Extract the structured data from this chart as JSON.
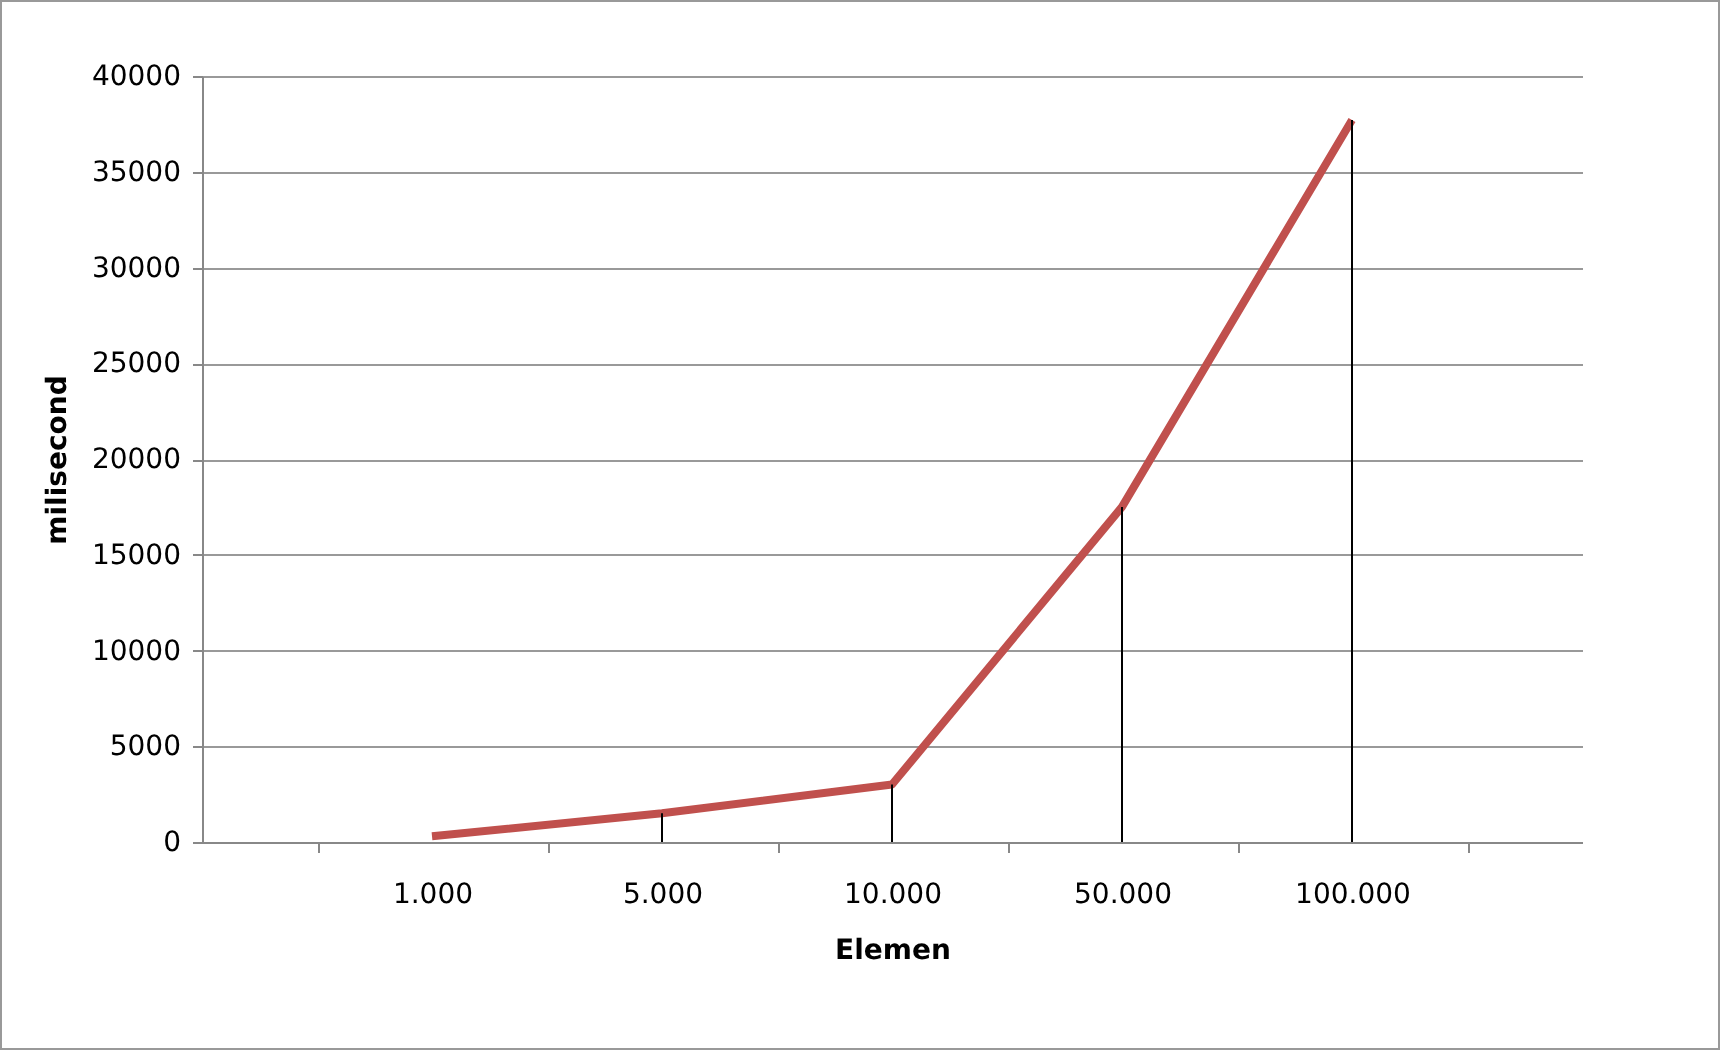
{
  "chart_data": {
    "type": "line",
    "xlabel": "Elemen",
    "ylabel": "milisecond",
    "categories": [
      "1.000",
      "5.000",
      "10.000",
      "50.000",
      "100.000"
    ],
    "series": [
      {
        "color": "#c0504d",
        "values": [
          300,
          1500,
          3000,
          17500,
          37700
        ],
        "errors": [
          null,
          [
            0,
            1500
          ],
          [
            0,
            3000
          ],
          [
            0,
            17500
          ],
          [
            0,
            37700
          ]
        ]
      }
    ],
    "ylim": [
      0,
      40000
    ],
    "yticks": [
      0,
      5000,
      10000,
      15000,
      20000,
      25000,
      30000,
      35000,
      40000
    ],
    "grid": "y",
    "legend": false,
    "marker": "none",
    "line_style": "solid"
  }
}
